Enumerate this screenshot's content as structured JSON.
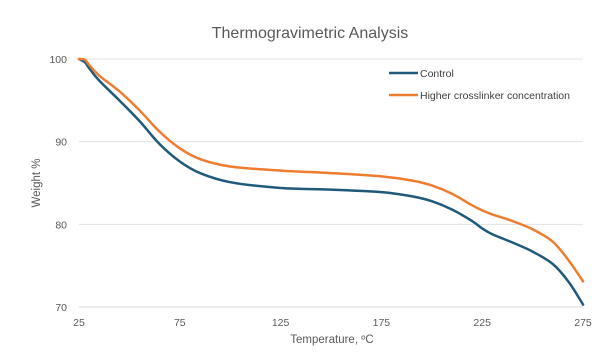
{
  "chart_data": {
    "type": "line",
    "title": "Thermogravimetric Analysis",
    "xlabel": "Temperature, ºC",
    "ylabel": "Weight %",
    "xlim": [
      25,
      275
    ],
    "ylim": [
      70,
      100
    ],
    "x_ticks": [
      "25",
      "75",
      "125",
      "175",
      "225",
      "275"
    ],
    "y_ticks": [
      "70",
      "80",
      "90",
      "100"
    ],
    "grid": "horizontal",
    "legend_position": "top-right",
    "series": [
      {
        "name": "Control",
        "color": "#1f5a7a",
        "points": [
          [
            25,
            100
          ],
          [
            28,
            99.6
          ],
          [
            30,
            98.9
          ],
          [
            35,
            97.4
          ],
          [
            45,
            95
          ],
          [
            55,
            92.5
          ],
          [
            65,
            89.7
          ],
          [
            75,
            87.6
          ],
          [
            85,
            86.2
          ],
          [
            100,
            85.1
          ],
          [
            125,
            84.4
          ],
          [
            150,
            84.2
          ],
          [
            175,
            83.9
          ],
          [
            190,
            83.4
          ],
          [
            200,
            82.8
          ],
          [
            210,
            81.8
          ],
          [
            220,
            80.4
          ],
          [
            225,
            79.5
          ],
          [
            230,
            78.8
          ],
          [
            240,
            77.8
          ],
          [
            250,
            76.7
          ],
          [
            260,
            75.2
          ],
          [
            268,
            73.0
          ],
          [
            275,
            70.3
          ]
        ]
      },
      {
        "name": "Higher crosslinker concentration",
        "color": "#ed7d31",
        "points": [
          [
            25,
            100
          ],
          [
            28,
            99.9
          ],
          [
            30,
            99.3
          ],
          [
            35,
            98
          ],
          [
            45,
            96.1
          ],
          [
            55,
            93.8
          ],
          [
            65,
            91.2
          ],
          [
            75,
            89.2
          ],
          [
            85,
            87.9
          ],
          [
            100,
            87.0
          ],
          [
            125,
            86.5
          ],
          [
            150,
            86.2
          ],
          [
            175,
            85.8
          ],
          [
            190,
            85.3
          ],
          [
            200,
            84.7
          ],
          [
            210,
            83.7
          ],
          [
            220,
            82.3
          ],
          [
            225,
            81.7
          ],
          [
            230,
            81.2
          ],
          [
            240,
            80.4
          ],
          [
            250,
            79.4
          ],
          [
            260,
            77.9
          ],
          [
            268,
            75.6
          ],
          [
            275,
            73.1
          ]
        ]
      }
    ]
  }
}
